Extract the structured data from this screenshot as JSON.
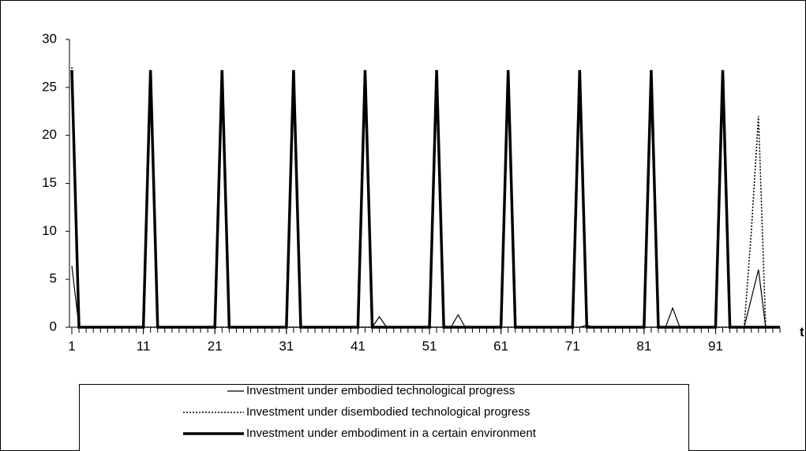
{
  "chart_data": {
    "type": "line",
    "x": [
      1,
      2,
      3,
      4,
      5,
      6,
      7,
      8,
      9,
      10,
      11,
      12,
      13,
      14,
      15,
      16,
      17,
      18,
      19,
      20,
      21,
      22,
      23,
      24,
      25,
      26,
      27,
      28,
      29,
      30,
      31,
      32,
      33,
      34,
      35,
      36,
      37,
      38,
      39,
      40,
      41,
      42,
      43,
      44,
      45,
      46,
      47,
      48,
      49,
      50,
      51,
      52,
      53,
      54,
      55,
      56,
      57,
      58,
      59,
      60,
      61,
      62,
      63,
      64,
      65,
      66,
      67,
      68,
      69,
      70,
      71,
      72,
      73,
      74,
      75,
      76,
      77,
      78,
      79,
      80,
      81,
      82,
      83,
      84,
      85,
      86,
      87,
      88,
      89,
      90,
      91,
      92,
      93,
      94,
      95,
      96,
      97,
      98,
      99,
      100
    ],
    "xlim": [
      1,
      100
    ],
    "xticks": [
      1,
      11,
      21,
      31,
      41,
      51,
      61,
      71,
      81,
      91
    ],
    "ylim": [
      0,
      30
    ],
    "yticks": [
      0,
      5,
      10,
      15,
      20,
      25,
      30
    ],
    "x_label": "t",
    "grid": false,
    "series": [
      {
        "name": "Investment under embodied technological progress",
        "color": "#000000",
        "line_style": "solid",
        "line_width": 1.2,
        "values": [
          6.4,
          0,
          0,
          0,
          0,
          0,
          0,
          0,
          0,
          0,
          0,
          0,
          0,
          0,
          0,
          0,
          0,
          0,
          0,
          0,
          0,
          0,
          0,
          0,
          0,
          0,
          0,
          0,
          0,
          0,
          0,
          0,
          0,
          0,
          0,
          0,
          0,
          0,
          0,
          0,
          0,
          0,
          0,
          1.1,
          0,
          0,
          0,
          0,
          0,
          0,
          0,
          0,
          0,
          0,
          1.3,
          0,
          0,
          0,
          0,
          0,
          0,
          0,
          0,
          0,
          0,
          0,
          0,
          0,
          0,
          0,
          0,
          0,
          0.2,
          0,
          0,
          0,
          0,
          0,
          0,
          0,
          0,
          0,
          0,
          0,
          2,
          0,
          0,
          0,
          0,
          0,
          0,
          0,
          0,
          0,
          0,
          3,
          6,
          0,
          0,
          0
        ]
      },
      {
        "name": "Investment under disembodied technological progress",
        "color": "#000000",
        "line_style": "dotted",
        "line_width": 1.6,
        "values": [
          27.1,
          0,
          0,
          0,
          0,
          0,
          0,
          0,
          0,
          0,
          0,
          0,
          0,
          0,
          0,
          0,
          0,
          0,
          0,
          0,
          0,
          0,
          0,
          0,
          0,
          0,
          0,
          0,
          0,
          0,
          0,
          0,
          0,
          0,
          0,
          0,
          0,
          0,
          0,
          0,
          0,
          0,
          0,
          0,
          0,
          0,
          0,
          0,
          0,
          0,
          0,
          0,
          0,
          0,
          0,
          0,
          0,
          0,
          0,
          0,
          0,
          0,
          0,
          0,
          0,
          0,
          0,
          0,
          0,
          0,
          0,
          0,
          0,
          0,
          0,
          0,
          0,
          0,
          0,
          0,
          0,
          0,
          0,
          0,
          0,
          0,
          0,
          0,
          0,
          0,
          0,
          0,
          0,
          0,
          0,
          10,
          22,
          0,
          0,
          0
        ]
      },
      {
        "name": "Investment under embodiment in a certain environment",
        "color": "#000000",
        "line_style": "solid",
        "line_width": 3.5,
        "values": [
          26.8,
          0,
          0,
          0,
          0,
          0,
          0,
          0,
          0,
          0,
          0,
          26.8,
          0,
          0,
          0,
          0,
          0,
          0,
          0,
          0,
          0,
          26.8,
          0,
          0,
          0,
          0,
          0,
          0,
          0,
          0,
          0,
          26.8,
          0,
          0,
          0,
          0,
          0,
          0,
          0,
          0,
          0,
          26.8,
          0,
          0,
          0,
          0,
          0,
          0,
          0,
          0,
          0,
          26.8,
          0,
          0,
          0,
          0,
          0,
          0,
          0,
          0,
          0,
          26.8,
          0,
          0,
          0,
          0,
          0,
          0,
          0,
          0,
          0,
          26.8,
          0,
          0,
          0,
          0,
          0,
          0,
          0,
          0,
          0,
          26.8,
          0,
          0,
          0,
          0,
          0,
          0,
          0,
          0,
          0,
          26.8,
          0,
          0,
          0,
          0,
          0,
          0,
          0,
          0
        ]
      }
    ]
  }
}
